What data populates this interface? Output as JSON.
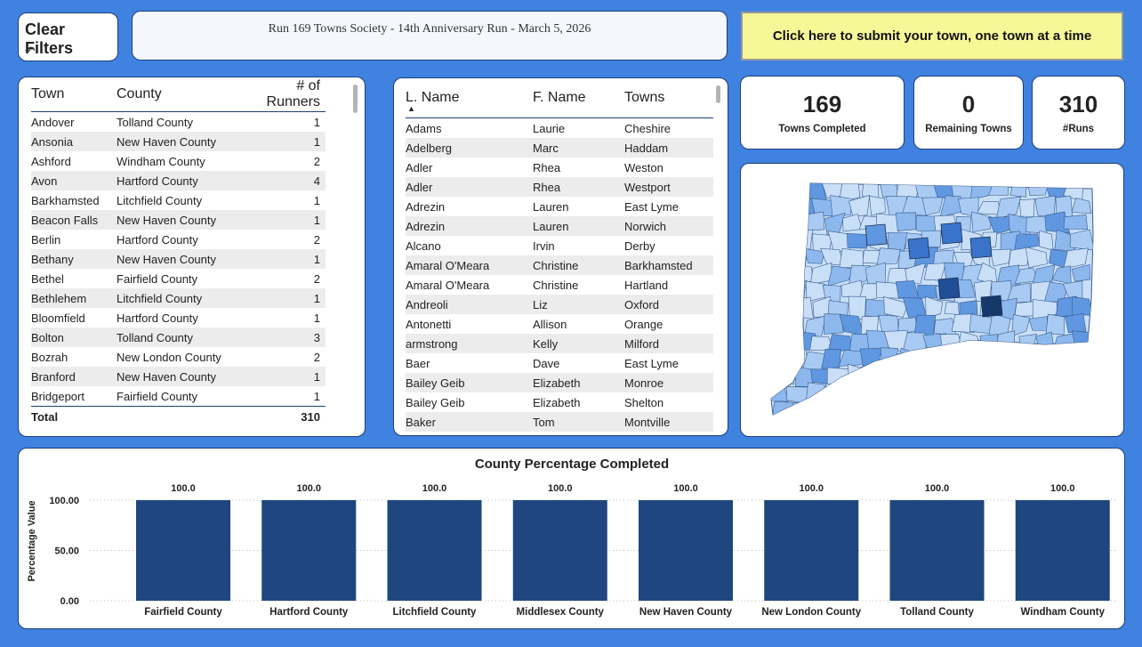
{
  "header": {
    "clear_filters_label": "Clear Filters",
    "title": "Run 169 Towns Society - 14th Anniversary Run - March 5, 2026",
    "submit_label": "Click here to submit your town, one town at a time"
  },
  "town_table": {
    "columns": [
      "Town",
      "County",
      "# of Runners"
    ],
    "rows": [
      [
        "Andover",
        "Tolland County",
        "1"
      ],
      [
        "Ansonia",
        "New Haven County",
        "1"
      ],
      [
        "Ashford",
        "Windham County",
        "2"
      ],
      [
        "Avon",
        "Hartford County",
        "4"
      ],
      [
        "Barkhamsted",
        "Litchfield County",
        "1"
      ],
      [
        "Beacon Falls",
        "New Haven County",
        "1"
      ],
      [
        "Berlin",
        "Hartford County",
        "2"
      ],
      [
        "Bethany",
        "New Haven County",
        "1"
      ],
      [
        "Bethel",
        "Fairfield County",
        "2"
      ],
      [
        "Bethlehem",
        "Litchfield County",
        "1"
      ],
      [
        "Bloomfield",
        "Hartford County",
        "1"
      ],
      [
        "Bolton",
        "Tolland County",
        "3"
      ],
      [
        "Bozrah",
        "New London County",
        "2"
      ],
      [
        "Branford",
        "New Haven County",
        "1"
      ],
      [
        "Bridgeport",
        "Fairfield County",
        "1"
      ]
    ],
    "total_label": "Total",
    "total_value": "310"
  },
  "runner_table": {
    "columns": [
      "L. Name",
      "F. Name",
      "Towns"
    ],
    "sort_indicator": "▲",
    "rows": [
      [
        "Adams",
        "Laurie",
        "Cheshire"
      ],
      [
        "Adelberg",
        "Marc",
        "Haddam"
      ],
      [
        "Adler",
        "Rhea",
        "Weston"
      ],
      [
        "Adler",
        "Rhea",
        "Westport"
      ],
      [
        "Adrezin",
        "Lauren",
        "East Lyme"
      ],
      [
        "Adrezin",
        "Lauren",
        "Norwich"
      ],
      [
        "Alcano",
        "Irvin",
        "Derby"
      ],
      [
        "Amaral O'Meara",
        "Christine",
        "Barkhamsted"
      ],
      [
        "Amaral O'Meara",
        "Christine",
        "Hartland"
      ],
      [
        "Andreoli",
        "Liz",
        "Oxford"
      ],
      [
        "Antonetti",
        "Allison",
        "Orange"
      ],
      [
        "armstrong",
        "Kelly",
        "Milford"
      ],
      [
        "Baer",
        "Dave",
        "East Lyme"
      ],
      [
        "Bailey Geib",
        "Elizabeth",
        "Monroe"
      ],
      [
        "Bailey Geib",
        "Elizabeth",
        "Shelton"
      ],
      [
        "Baker",
        "Tom",
        "Montville"
      ]
    ]
  },
  "kpis": {
    "towns_completed": {
      "value": "169",
      "label": "Towns Completed"
    },
    "remaining": {
      "value": "0",
      "label": "Remaining Towns"
    },
    "runs": {
      "value": "310",
      "label": "#Runs"
    }
  },
  "map": {
    "shade_colors": [
      "#c9dff8",
      "#a9cbf3",
      "#8cb8ee",
      "#5f97e0",
      "#3a73c9",
      "#1f4e96",
      "#17386b"
    ]
  },
  "chart_data": {
    "type": "bar",
    "title": "County Percentage Completed",
    "ylabel": "Percentage Value",
    "xlabel": "",
    "categories": [
      "Fairfield County",
      "Hartford County",
      "Litchfield County",
      "Middlesex County",
      "New Haven County",
      "New London County",
      "Tolland County",
      "Windham County"
    ],
    "values": [
      100,
      100,
      100,
      100,
      100,
      100,
      100,
      100
    ],
    "data_labels": [
      "100.0",
      "100.0",
      "100.0",
      "100.0",
      "100.0",
      "100.0",
      "100.0",
      "100.0"
    ],
    "yticks": [
      "0.00",
      "50.00",
      "100.00"
    ],
    "ylim": [
      0,
      100
    ],
    "bar_color": "#1f467f",
    "grid": "dotted horizontal"
  }
}
